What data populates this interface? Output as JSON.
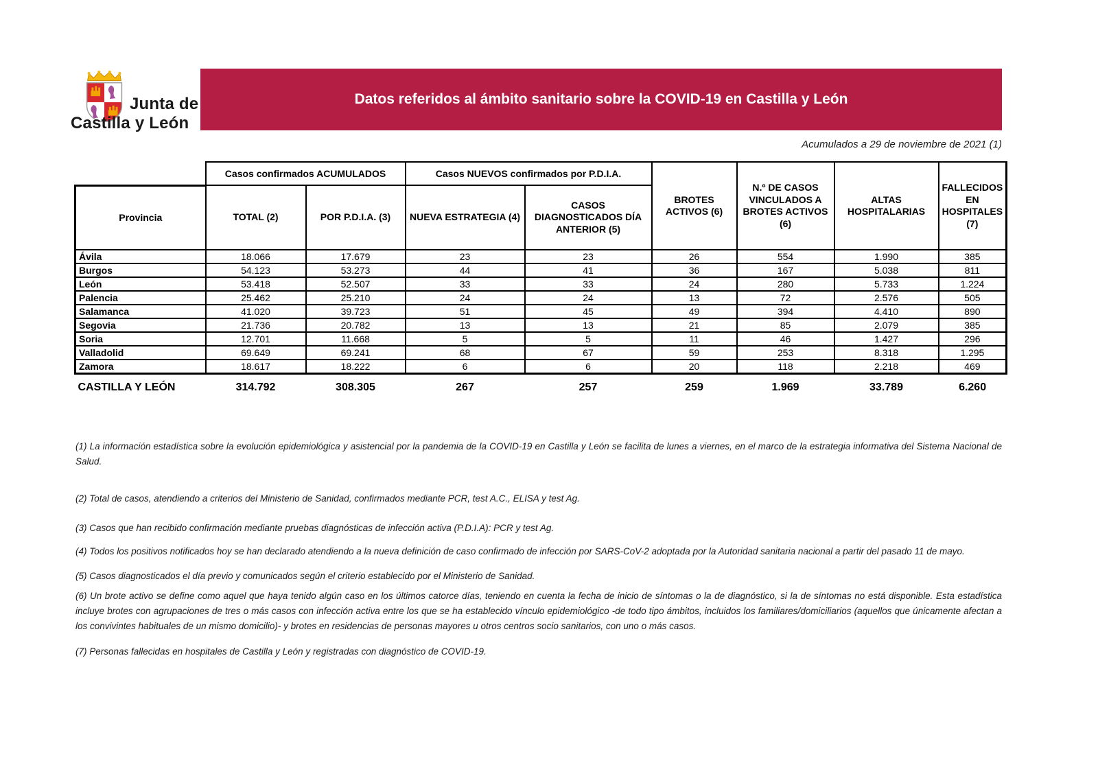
{
  "logo": {
    "line1": "Junta de",
    "line2": "Castilla y León"
  },
  "banner": {
    "title": "Datos referidos al ámbito sanitario sobre la COVID-19 en Castilla y León"
  },
  "date_note": "Acumulados a 29 de noviembre de 2021 (1)",
  "colors": {
    "banner_bg": "#B41E44",
    "banner_text": "#FFFFFF",
    "shield_red": "#D7282F",
    "shield_gold": "#F0A500",
    "shield_purple": "#A4509B"
  },
  "table": {
    "group_headers": [
      "Casos confirmados ACUMULADOS",
      "Casos NUEVOS confirmados por P.D.I.A."
    ],
    "columns": [
      "Provincia",
      "TOTAL (2)",
      "POR P.D.I.A. (3)",
      "NUEVA ESTRATEGIA (4)",
      "CASOS DIAGNOSTICADOS DÍA ANTERIOR (5)",
      "BROTES ACTIVOS (6)",
      "N.º DE CASOS VINCULADOS A BROTES ACTIVOS (6)",
      "ALTAS HOSPITALARIAS",
      "FALLECIDOS EN HOSPITALES (7)"
    ],
    "rows": [
      {
        "province": "Ávila",
        "values": [
          "18.066",
          "17.679",
          "23",
          "23",
          "26",
          "554",
          "1.990",
          "385"
        ]
      },
      {
        "province": "Burgos",
        "values": [
          "54.123",
          "53.273",
          "44",
          "41",
          "36",
          "167",
          "5.038",
          "811"
        ]
      },
      {
        "province": "León",
        "values": [
          "53.418",
          "52.507",
          "33",
          "33",
          "24",
          "280",
          "5.733",
          "1.224"
        ]
      },
      {
        "province": "Palencia",
        "values": [
          "25.462",
          "25.210",
          "24",
          "24",
          "13",
          "72",
          "2.576",
          "505"
        ]
      },
      {
        "province": "Salamanca",
        "values": [
          "41.020",
          "39.723",
          "51",
          "45",
          "49",
          "394",
          "4.410",
          "890"
        ]
      },
      {
        "province": "Segovia",
        "values": [
          "21.736",
          "20.782",
          "13",
          "13",
          "21",
          "85",
          "2.079",
          "385"
        ]
      },
      {
        "province": "Soria",
        "values": [
          "12.701",
          "11.668",
          "5",
          "5",
          "11",
          "46",
          "1.427",
          "296"
        ]
      },
      {
        "province": "Valladolid",
        "values": [
          "69.649",
          "69.241",
          "68",
          "67",
          "59",
          "253",
          "8.318",
          "1.295"
        ]
      },
      {
        "province": "Zamora",
        "values": [
          "18.617",
          "18.222",
          "6",
          "6",
          "20",
          "118",
          "2.218",
          "469"
        ]
      }
    ],
    "totals": {
      "label": "CASTILLA Y LEÓN",
      "values": [
        "314.792",
        "308.305",
        "267",
        "257",
        "259",
        "1.969",
        "33.789",
        "6.260"
      ]
    }
  },
  "footnotes": [
    "(1) La información estadística sobre la evolución epidemiológica y asistencial por la pandemia de la COVID-19 en Castilla y León se facilita de lunes a viernes, en el marco de la estrategia informativa del Sistema Nacional de Salud.",
    "(2) Total de casos, atendiendo a criterios del Ministerio de Sanidad, confirmados mediante PCR, test A.C., ELISA y test Ag.",
    "(3) Casos que han recibido confirmación mediante pruebas diagnósticas de infección activa (P.D.I.A): PCR y test Ag.",
    "(4) Todos los positivos notificados hoy se han declarado atendiendo a la nueva definición de caso confirmado de infección por SARS-CoV-2 adoptada por la Autoridad sanitaria nacional a partir del pasado 11 de mayo.",
    "(5) Casos diagnosticados el día previo y comunicados según el criterio establecido por el Ministerio de Sanidad.",
    "(6) Un brote activo se define como aquel que haya tenido algún caso en los últimos catorce días, teniendo en cuenta la fecha de inicio de síntomas o la de diagnóstico, si la de síntomas no está disponible. Esta estadística incluye brotes con agrupaciones de tres o más casos con infección activa entre los que se ha establecido vínculo epidemiológico -de todo tipo ámbitos, incluidos los familiares/domiciliarios (aquellos que únicamente afectan a los convivintes habituales de un mismo domicilio)- y brotes en residencias de personas mayores u otros centros socio sanitarios, con uno o más casos.",
    "(7) Personas fallecidas en hospitales de Castilla y León y registradas con diagnóstico de COVID-19."
  ]
}
